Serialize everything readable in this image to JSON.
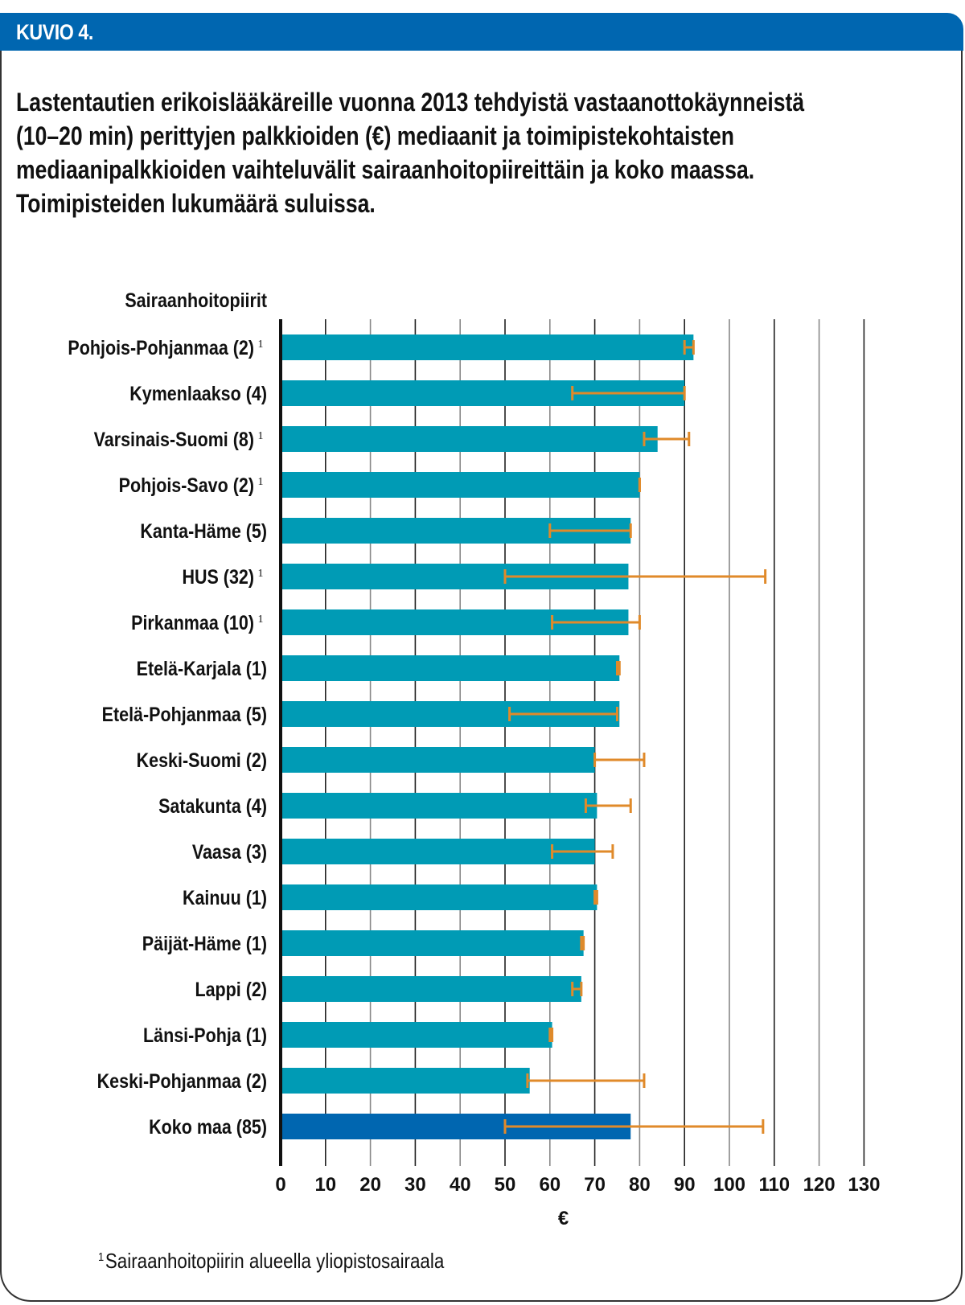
{
  "header": {
    "label": "KUVIO 4."
  },
  "title_lines": [
    "Lastentautien erikoislääkäreille vuonna 2013 tehdyistä vastaanottokäynneistä",
    "(10–20 min) perittyjen palkkioiden (€) mediaanit ja toimipistekohtaisten",
    "mediaanipalkkioiden vaihteluvälit sairaanhoitopiireittäin ja koko maassa.",
    "Toimipisteiden lukumäärä suluissa."
  ],
  "footnote": {
    "marker": "1",
    "text": "Sairaanhoitopiirin alueella yliopistosairaala"
  },
  "colors": {
    "header": "#0066b0",
    "bar": "#009bb5",
    "total_bar": "#0066b0",
    "error_bar": "#e08a2a"
  },
  "chart_data": {
    "type": "bar",
    "orientation": "horizontal",
    "category_axis_title": "Sairaanhoitopiirit",
    "xlabel": "€",
    "xlim": [
      0,
      130
    ],
    "xticks": [
      "0",
      "10",
      "20",
      "30",
      "40",
      "50",
      "60",
      "70",
      "80",
      "90",
      "100",
      "110",
      "120",
      "130"
    ],
    "grid": true,
    "footnote_marker": "1",
    "categories": [
      {
        "label": "Pohjois-Pohjanmaa (2)",
        "note": true,
        "median": 92,
        "range": [
          90,
          92
        ],
        "total": false
      },
      {
        "label": "Kymenlaakso (4)",
        "note": false,
        "median": 90,
        "range": [
          65,
          90
        ],
        "total": false
      },
      {
        "label": "Varsinais-Suomi (8)",
        "note": true,
        "median": 84,
        "range": [
          81,
          91
        ],
        "total": false
      },
      {
        "label": "Pohjois-Savo (2)",
        "note": true,
        "median": 80,
        "range": [
          80,
          80
        ],
        "total": false
      },
      {
        "label": "Kanta-Häme (5)",
        "note": false,
        "median": 78,
        "range": [
          60,
          78
        ],
        "total": false
      },
      {
        "label": "HUS (32)",
        "note": true,
        "median": 77.5,
        "range": [
          50,
          108
        ],
        "total": false
      },
      {
        "label": "Pirkanmaa (10)",
        "note": true,
        "median": 77.5,
        "range": [
          60.5,
          80
        ],
        "total": false
      },
      {
        "label": "Etelä-Karjala (1)",
        "note": false,
        "median": 75.5,
        "range": [
          75,
          75.5
        ],
        "total": false
      },
      {
        "label": "Etelä-Pohjanmaa (5)",
        "note": false,
        "median": 75.5,
        "range": [
          51,
          75
        ],
        "total": false
      },
      {
        "label": "Keski-Suomi (2)",
        "note": false,
        "median": 70,
        "range": [
          70,
          81
        ],
        "total": false
      },
      {
        "label": "Satakunta (4)",
        "note": false,
        "median": 70.5,
        "range": [
          68,
          78
        ],
        "total": false
      },
      {
        "label": "Vaasa (3)",
        "note": false,
        "median": 70,
        "range": [
          60.5,
          74
        ],
        "total": false
      },
      {
        "label": "Kainuu (1)",
        "note": false,
        "median": 70.5,
        "range": [
          70,
          70.5
        ],
        "total": false
      },
      {
        "label": "Päijät-Häme (1)",
        "note": false,
        "median": 67.5,
        "range": [
          67,
          67.5
        ],
        "total": false
      },
      {
        "label": "Lappi (2)",
        "note": false,
        "median": 67,
        "range": [
          65,
          67
        ],
        "total": false
      },
      {
        "label": "Länsi-Pohja (1)",
        "note": false,
        "median": 60.5,
        "range": [
          60,
          60.5
        ],
        "total": false
      },
      {
        "label": "Keski-Pohjanmaa (2)",
        "note": false,
        "median": 55.5,
        "range": [
          55,
          81
        ],
        "total": false
      },
      {
        "label": "Koko maa (85)",
        "note": false,
        "median": 78,
        "range": [
          50,
          107.5
        ],
        "total": true
      }
    ]
  }
}
